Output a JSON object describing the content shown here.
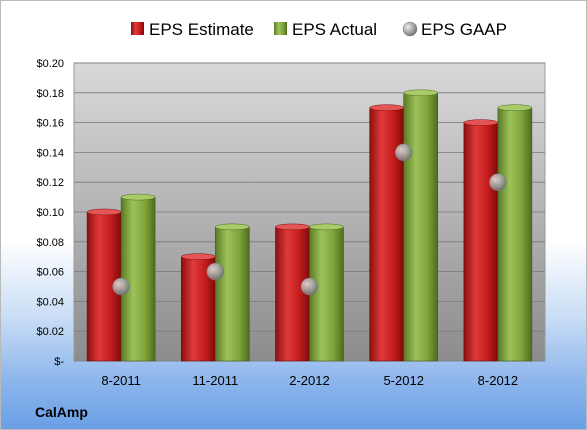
{
  "company": "CalAmp",
  "colors": {
    "estimate": "#cc1f1f",
    "actual": "#7fa43a",
    "gaap": "#a9a9a9"
  },
  "chart_data": {
    "type": "bar",
    "categories": [
      "8-2011",
      "11-2011",
      "2-2012",
      "5-2012",
      "8-2012"
    ],
    "series": [
      {
        "name": "EPS Estimate",
        "kind": "bar",
        "values": [
          0.1,
          0.07,
          0.09,
          0.17,
          0.16
        ]
      },
      {
        "name": "EPS Actual",
        "kind": "bar",
        "values": [
          0.11,
          0.09,
          0.09,
          0.18,
          0.17
        ]
      },
      {
        "name": "EPS GAAP",
        "kind": "marker",
        "values": [
          0.05,
          0.06,
          0.05,
          0.14,
          0.12
        ]
      }
    ],
    "y_ticks": [
      "$-",
      "$0.02",
      "$0.04",
      "$0.06",
      "$0.08",
      "$0.10",
      "$0.12",
      "$0.14",
      "$0.16",
      "$0.18",
      "$0.20"
    ],
    "ylim": [
      0,
      0.2
    ],
    "legend_position": "top",
    "grid": true
  }
}
